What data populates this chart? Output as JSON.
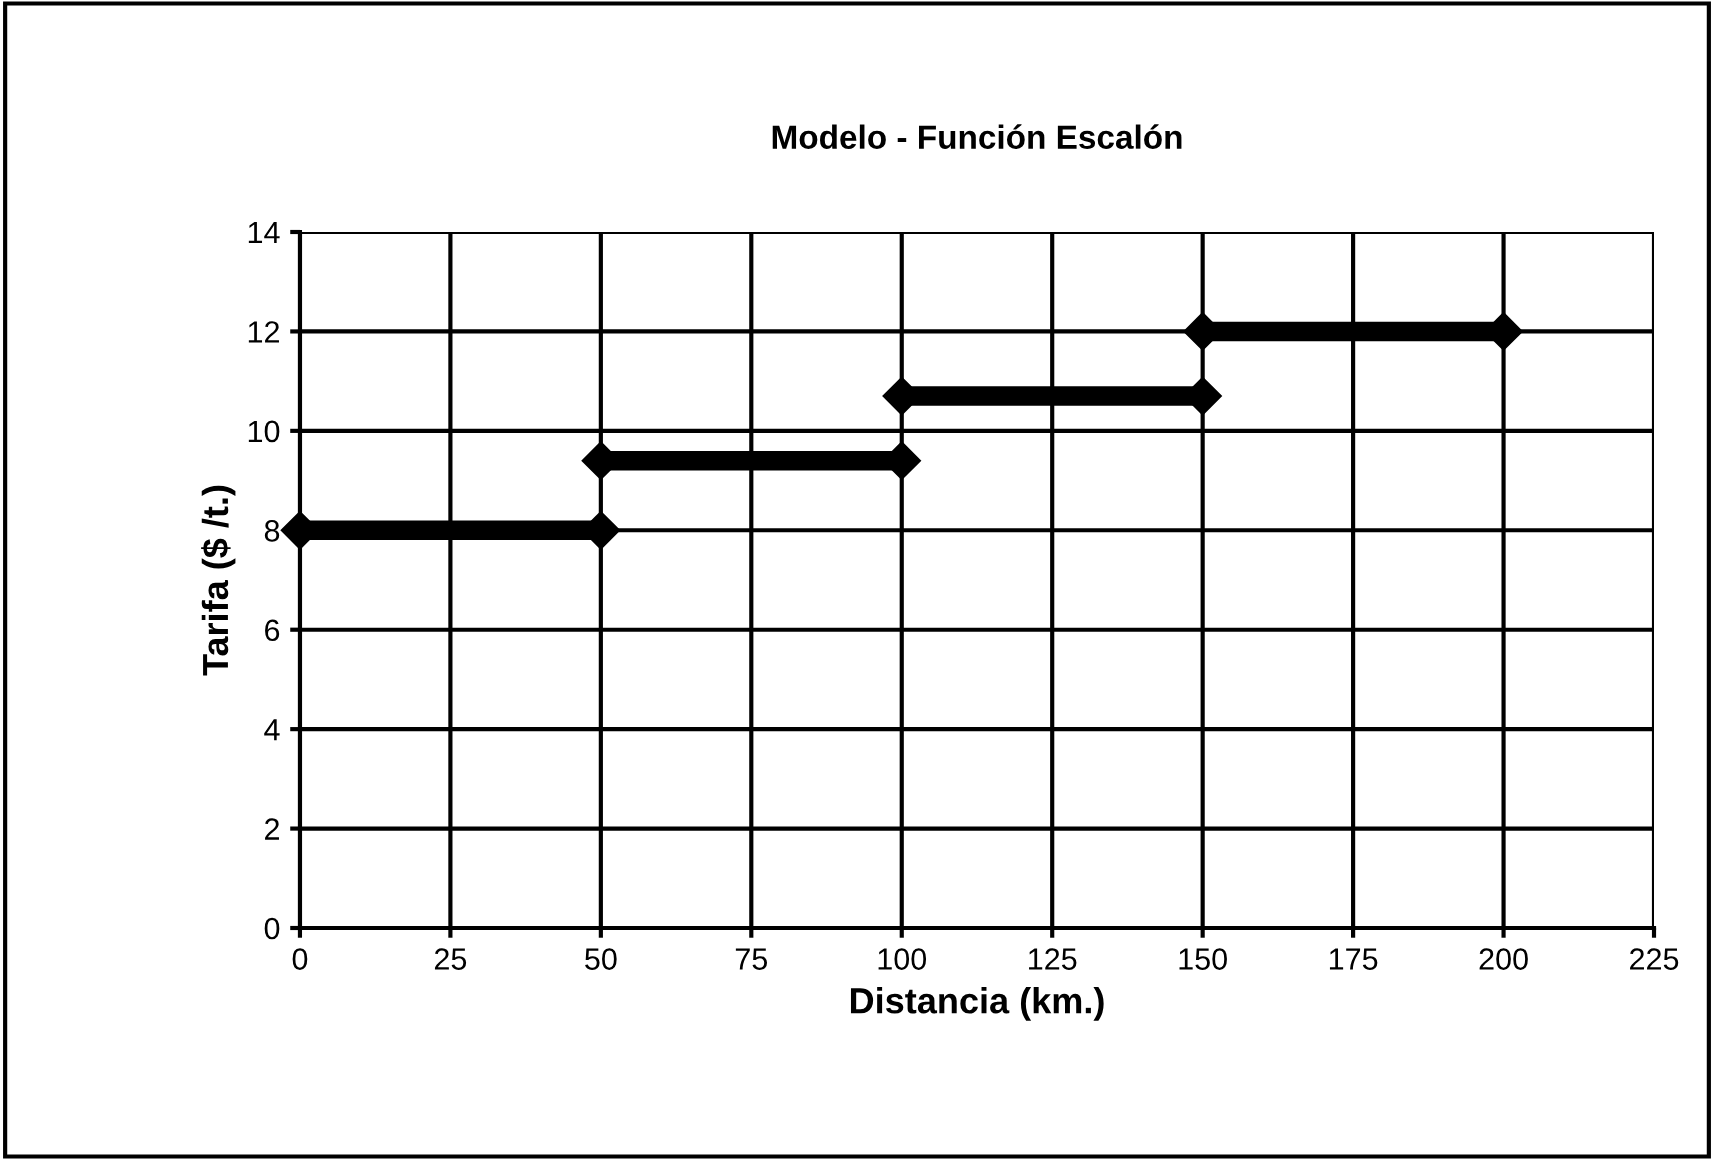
{
  "chart_data": {
    "type": "line",
    "title": "Modelo - Función Escalón",
    "xlabel": "Distancia (km.)",
    "ylabel": "Tarifa ($ /t.)",
    "series": [
      {
        "x": [
          0,
          50
        ],
        "values": [
          8,
          8
        ],
        "color": "#000000"
      },
      {
        "x": [
          50,
          100
        ],
        "values": [
          9.4,
          9.4
        ],
        "color": "#000000"
      },
      {
        "x": [
          100,
          150
        ],
        "values": [
          10.7,
          10.7
        ],
        "color": "#000000"
      },
      {
        "x": [
          150,
          200
        ],
        "values": [
          12,
          12
        ],
        "color": "#000000"
      }
    ],
    "xlim": [
      0,
      225
    ],
    "xticks": [
      0,
      25,
      50,
      75,
      100,
      125,
      150,
      175,
      200,
      225
    ],
    "ylim": [
      0,
      14
    ],
    "yticks": [
      0,
      2,
      4,
      6,
      8,
      10,
      12,
      14
    ],
    "grid": true,
    "marker": "diamond",
    "line_style": "solid"
  }
}
